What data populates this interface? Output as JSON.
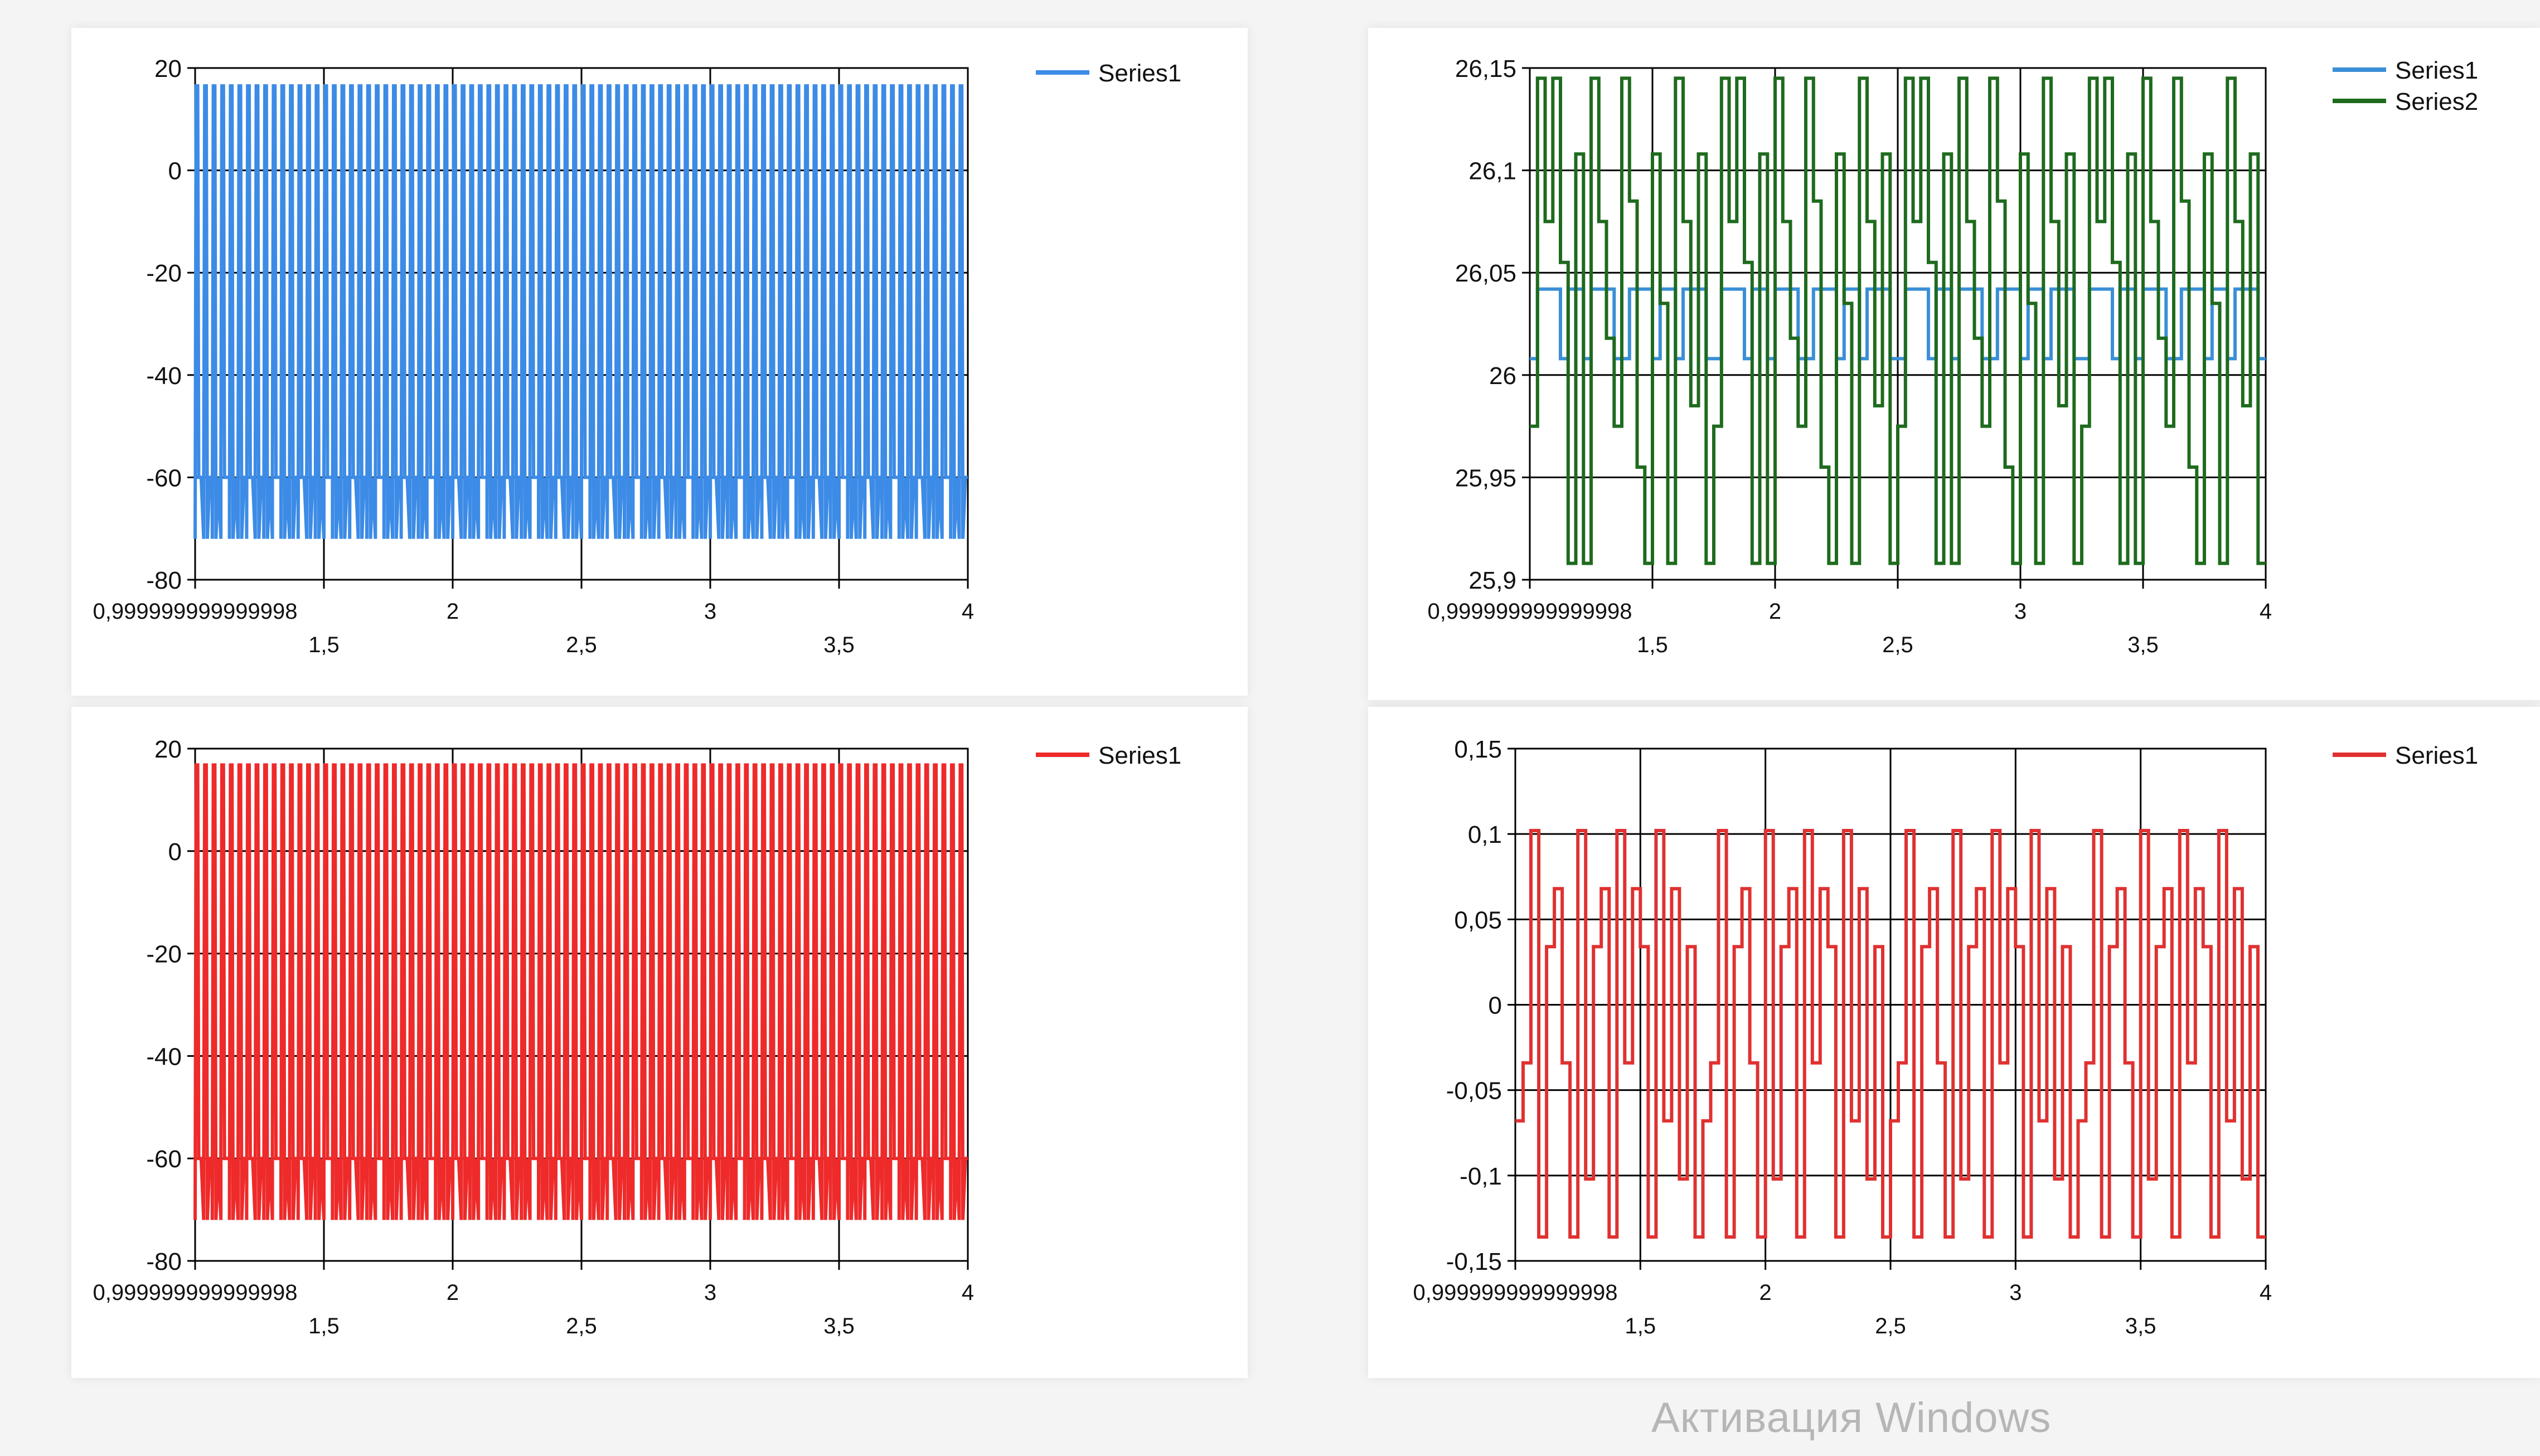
{
  "chart_data": [
    {
      "id": "top-left",
      "type": "line",
      "title": "",
      "xlabel": "",
      "ylabel": "",
      "xlim": [
        1,
        4
      ],
      "ylim": [
        -80,
        20
      ],
      "x_tick_labels_top_row": [
        "0,999999999999998",
        "2",
        "3",
        "4"
      ],
      "x_tick_labels_bottom_row": [
        "1,5",
        "2,5",
        "3,5"
      ],
      "y_tick_labels": [
        "20",
        "0",
        "-20",
        "-40",
        "-60",
        "-80"
      ],
      "grid": true,
      "legend": "top-right",
      "series": [
        {
          "name": "Series1",
          "color": "#3c8be6",
          "pattern": "periodic spikes",
          "x_start": 1,
          "x_end": 4,
          "cycles": 90,
          "peak": 16.5,
          "baseline_low": -72,
          "baseline_high": -60
        }
      ]
    },
    {
      "id": "top-right",
      "type": "line",
      "title": "",
      "xlabel": "",
      "ylabel": "",
      "xlim": [
        1,
        4
      ],
      "ylim": [
        25.9,
        26.15
      ],
      "x_tick_labels_top_row": [
        "0,999999999999998",
        "2",
        "3",
        "4"
      ],
      "x_tick_labels_bottom_row": [
        "1,5",
        "2,5",
        "3,5"
      ],
      "y_tick_labels": [
        "26,15",
        "26,1",
        "26,05",
        "26",
        "25,95",
        "25,9"
      ],
      "grid": true,
      "legend": "top-right",
      "series": [
        {
          "name": "Series1",
          "color": "#3a8fd6",
          "pattern": "step",
          "levels": [
            26.008,
            26.042,
            26.042,
            26.042,
            26.008,
            26.042,
            26.042,
            26.008,
            26.042,
            26.042,
            26.042,
            26.008
          ],
          "x_start": 1,
          "x_end": 4,
          "step_count": 96
        },
        {
          "name": "Series2",
          "color": "#1e6b1e",
          "pattern": "step",
          "levels": [
            25.975,
            26.145,
            26.075,
            26.145,
            26.055,
            25.908,
            26.108,
            25.908,
            26.145,
            26.075,
            26.018,
            25.975,
            26.145,
            26.085,
            25.955,
            25.908,
            26.108,
            26.035,
            25.908,
            26.145,
            26.075,
            25.985,
            26.108,
            25.908
          ],
          "x_start": 1,
          "x_end": 4,
          "step_count": 96
        }
      ]
    },
    {
      "id": "bottom-left",
      "type": "line",
      "title": "",
      "xlabel": "",
      "ylabel": "",
      "xlim": [
        1,
        4
      ],
      "ylim": [
        -80,
        20
      ],
      "x_tick_labels_top_row": [
        "0,999999999999998",
        "2",
        "3",
        "4"
      ],
      "x_tick_labels_bottom_row": [
        "1,5",
        "2,5",
        "3,5"
      ],
      "y_tick_labels": [
        "20",
        "0",
        "-20",
        "-40",
        "-60",
        "-80"
      ],
      "grid": true,
      "legend": "top-right",
      "series": [
        {
          "name": "Series1",
          "color": "#ee2a2a",
          "pattern": "periodic spikes",
          "x_start": 1,
          "x_end": 4,
          "cycles": 90,
          "peak": 16.8,
          "baseline_low": -72,
          "baseline_high": -60
        }
      ]
    },
    {
      "id": "bottom-right",
      "type": "line",
      "title": "",
      "xlabel": "",
      "ylabel": "",
      "xlim": [
        1,
        4
      ],
      "ylim": [
        -0.15,
        0.15
      ],
      "x_tick_labels_top_row": [
        "0,999999999999998",
        "2",
        "3",
        "4"
      ],
      "x_tick_labels_bottom_row": [
        "1,5",
        "2,5",
        "3,5"
      ],
      "y_tick_labels": [
        "0,15",
        "0,1",
        "0,05",
        "0",
        "-0,05",
        "-0,1",
        "-0,15"
      ],
      "grid": true,
      "legend": "top-right",
      "series": [
        {
          "name": "Series1",
          "color": "#e03131",
          "pattern": "step",
          "levels": [
            -0.068,
            -0.034,
            0.102,
            -0.136,
            0.034,
            0.068,
            -0.034,
            -0.136,
            0.102,
            -0.102,
            0.034,
            0.068,
            -0.136,
            0.102,
            -0.034,
            0.068,
            0.034,
            -0.136,
            0.102,
            -0.068,
            0.068,
            -0.102,
            0.034,
            -0.136
          ],
          "x_start": 1,
          "x_end": 4,
          "step_count": 96
        }
      ]
    }
  ],
  "watermark": {
    "text": "Активация Windows"
  }
}
